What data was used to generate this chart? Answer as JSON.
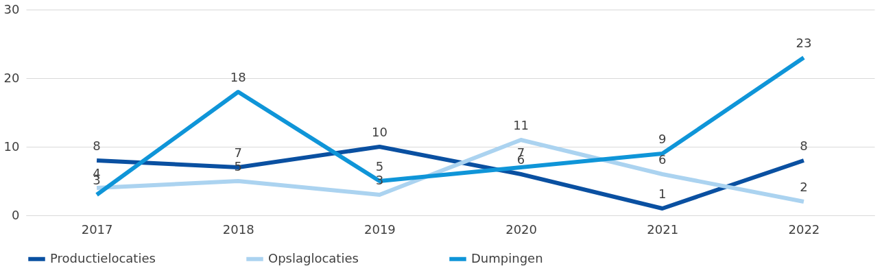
{
  "chart_data": {
    "type": "line",
    "categories": [
      "2017",
      "2018",
      "2019",
      "2020",
      "2021",
      "2022"
    ],
    "series": [
      {
        "name": "Productielocaties",
        "color": "#0a50a1",
        "values": [
          8,
          7,
          10,
          6,
          1,
          8
        ]
      },
      {
        "name": "Opslaglocaties",
        "color": "#abd3f0",
        "values": [
          4,
          5,
          3,
          11,
          6,
          2
        ]
      },
      {
        "name": "Dumpingen",
        "color": "#0f95d8",
        "values": [
          3,
          18,
          5,
          7,
          9,
          23
        ]
      }
    ],
    "ylim": [
      0,
      30
    ],
    "yticks": [
      0,
      10,
      20,
      30
    ],
    "grid": "y",
    "line_style": "solid",
    "legend": "bottom",
    "data_labels": true
  }
}
